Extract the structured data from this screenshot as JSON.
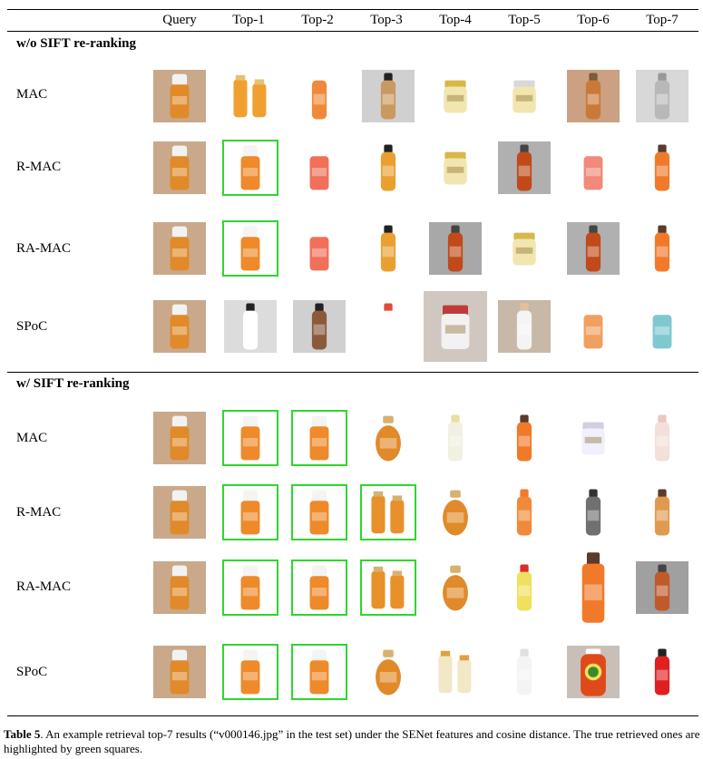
{
  "columns": [
    "Query",
    "Top-1",
    "Top-2",
    "Top-3",
    "Top-4",
    "Top-5",
    "Top-6",
    "Top-7"
  ],
  "sections": [
    {
      "title": "w/o SIFT re-ranking",
      "rows": [
        {
          "method": "MAC",
          "highlights": [
            false,
            false,
            false,
            false,
            false,
            false,
            false
          ]
        },
        {
          "method": "R-MAC",
          "highlights": [
            true,
            false,
            false,
            false,
            false,
            false,
            false
          ]
        },
        {
          "method": "RA-MAC",
          "highlights": [
            true,
            false,
            false,
            false,
            false,
            false,
            false
          ]
        },
        {
          "method": "SPoC",
          "highlights": [
            false,
            false,
            false,
            false,
            false,
            false,
            false
          ]
        }
      ]
    },
    {
      "title": "w/ SIFT re-ranking",
      "rows": [
        {
          "method": "MAC",
          "highlights": [
            true,
            true,
            false,
            false,
            false,
            false,
            false
          ]
        },
        {
          "method": "R-MAC",
          "highlights": [
            true,
            true,
            true,
            false,
            false,
            false,
            false
          ]
        },
        {
          "method": "RA-MAC",
          "highlights": [
            true,
            true,
            true,
            false,
            false,
            false,
            false
          ]
        },
        {
          "method": "SPoC",
          "highlights": [
            true,
            true,
            false,
            false,
            false,
            false,
            false
          ]
        }
      ]
    }
  ],
  "caption": {
    "label": "Table 5",
    "text": ". An example retrieval top-7 results (“v000146.jpg” in the test set) under the SENet features and cosine distance. The true retrieved ones are highlighted by green squares."
  },
  "colors": {
    "highlight": "#2fd62f"
  }
}
